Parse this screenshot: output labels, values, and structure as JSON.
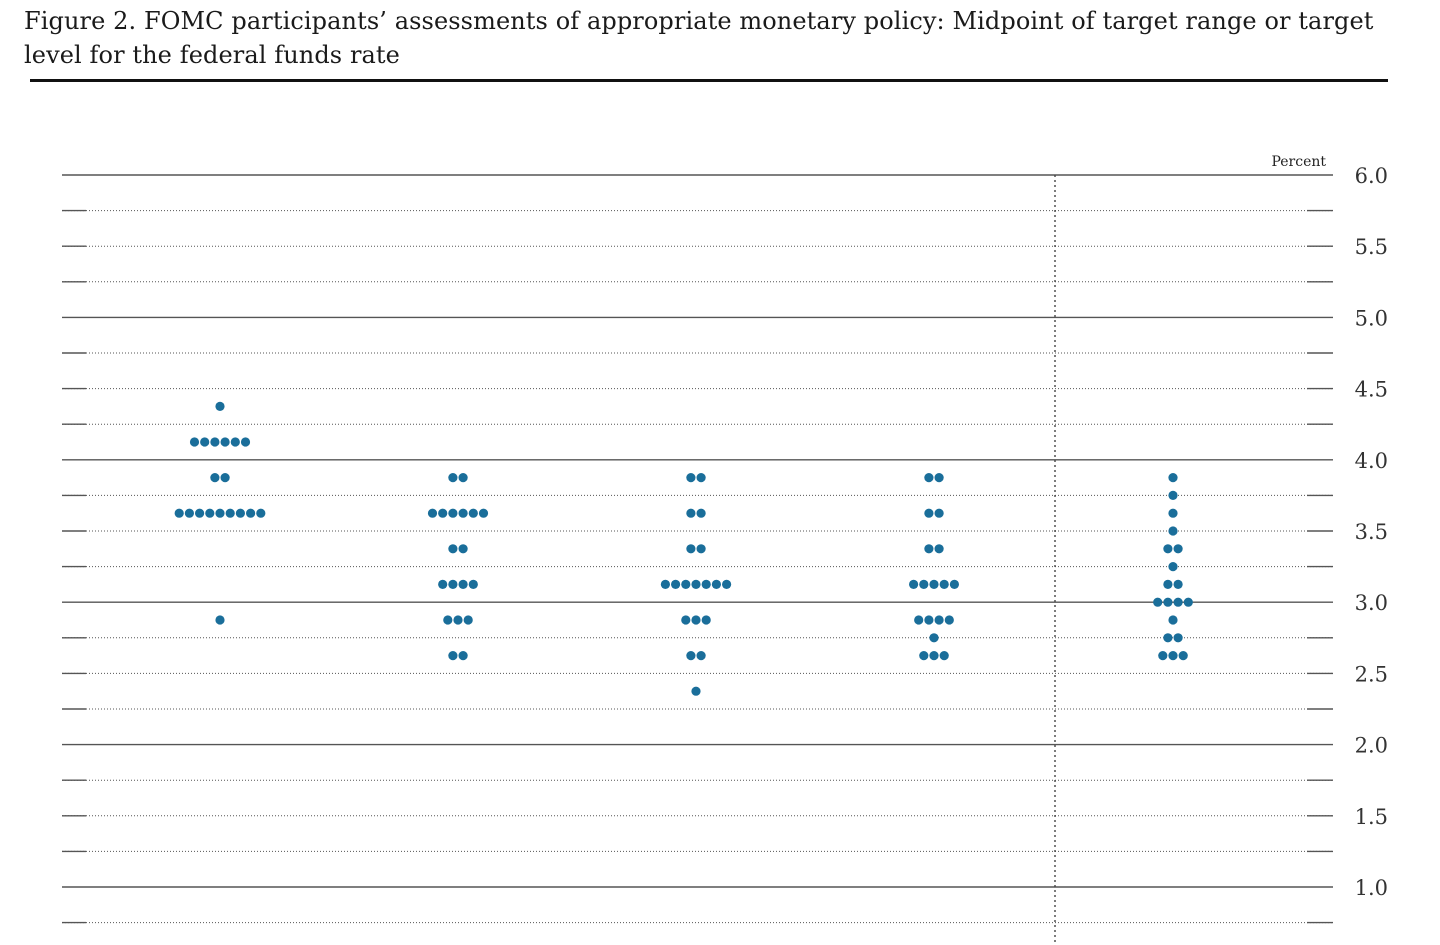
{
  "figure": {
    "title": "Figure 2. FOMC participants’ assessments of appropriate monetary policy: Midpoint of target range or target level for the federal funds rate"
  },
  "chart_data": {
    "type": "scatter",
    "title": "Figure 2. FOMC participants’ assessments of appropriate monetary policy: Midpoint of target range or target level for the federal funds rate",
    "ylabel": "Percent",
    "xlabel": "",
    "ylim": [
      0.75,
      6.0
    ],
    "y_ticks": [
      {
        "value": 6.0,
        "label": "6.0"
      },
      {
        "value": 5.5,
        "label": "5.5"
      },
      {
        "value": 5.0,
        "label": "5.0"
      },
      {
        "value": 4.5,
        "label": "4.5"
      },
      {
        "value": 4.0,
        "label": "4.0"
      },
      {
        "value": 3.5,
        "label": "3.5"
      },
      {
        "value": 3.0,
        "label": "3.0"
      },
      {
        "value": 2.5,
        "label": "2.5"
      },
      {
        "value": 2.0,
        "label": "2.0"
      },
      {
        "value": 1.5,
        "label": "1.5"
      },
      {
        "value": 1.0,
        "label": "1.0"
      }
    ],
    "solid_gridlines": [
      6.0,
      5.0,
      4.0,
      3.0,
      2.0,
      1.0
    ],
    "dotted_gridlines": [
      5.75,
      5.5,
      5.25,
      4.75,
      4.5,
      4.25,
      3.75,
      3.5,
      3.25,
      2.75,
      2.5,
      2.25,
      1.75,
      1.5,
      1.25,
      0.75
    ],
    "longer_run_separator": true,
    "dot_color": "#1a6e9a",
    "grid_color": "#555555",
    "columns": [
      {
        "dots": [
          {
            "rate": 4.375,
            "count": 1
          },
          {
            "rate": 4.125,
            "count": 6
          },
          {
            "rate": 3.875,
            "count": 2
          },
          {
            "rate": 3.625,
            "count": 9
          },
          {
            "rate": 2.875,
            "count": 1
          }
        ]
      },
      {
        "dots": [
          {
            "rate": 3.875,
            "count": 2
          },
          {
            "rate": 3.625,
            "count": 6
          },
          {
            "rate": 3.375,
            "count": 2
          },
          {
            "rate": 3.125,
            "count": 4
          },
          {
            "rate": 2.875,
            "count": 3
          },
          {
            "rate": 2.625,
            "count": 2
          }
        ]
      },
      {
        "dots": [
          {
            "rate": 3.875,
            "count": 2
          },
          {
            "rate": 3.625,
            "count": 2
          },
          {
            "rate": 3.375,
            "count": 2
          },
          {
            "rate": 3.125,
            "count": 7
          },
          {
            "rate": 2.875,
            "count": 3
          },
          {
            "rate": 2.625,
            "count": 2
          },
          {
            "rate": 2.375,
            "count": 1
          }
        ]
      },
      {
        "dots": [
          {
            "rate": 3.875,
            "count": 2
          },
          {
            "rate": 3.625,
            "count": 2
          },
          {
            "rate": 3.375,
            "count": 2
          },
          {
            "rate": 3.125,
            "count": 5
          },
          {
            "rate": 2.875,
            "count": 4
          },
          {
            "rate": 2.75,
            "count": 1
          },
          {
            "rate": 2.625,
            "count": 3
          }
        ]
      },
      {
        "dots": [
          {
            "rate": 3.875,
            "count": 1
          },
          {
            "rate": 3.75,
            "count": 1
          },
          {
            "rate": 3.625,
            "count": 1
          },
          {
            "rate": 3.5,
            "count": 1
          },
          {
            "rate": 3.375,
            "count": 2
          },
          {
            "rate": 3.25,
            "count": 1
          },
          {
            "rate": 3.125,
            "count": 2
          },
          {
            "rate": 3.0,
            "count": 4
          },
          {
            "rate": 2.875,
            "count": 1
          },
          {
            "rate": 2.75,
            "count": 2
          },
          {
            "rate": 2.625,
            "count": 3
          }
        ]
      }
    ]
  }
}
